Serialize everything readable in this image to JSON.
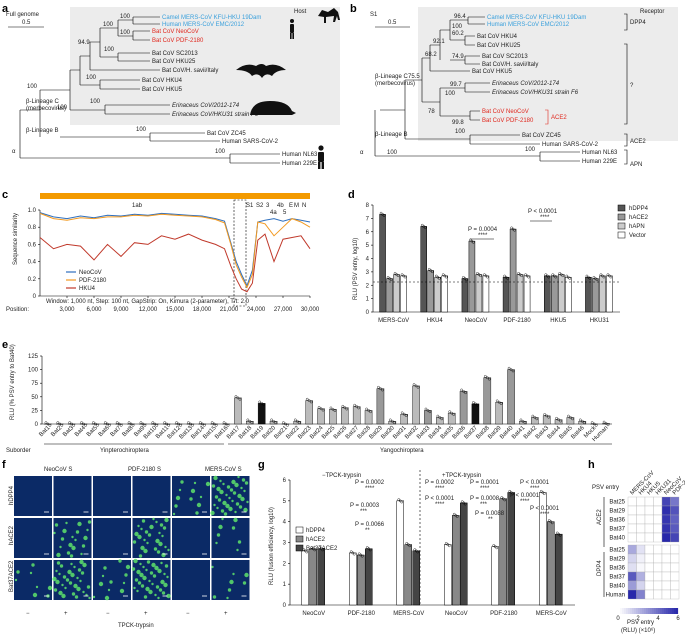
{
  "panel_labels": {
    "a": "a",
    "b": "b",
    "c": "c",
    "d": "d",
    "e": "e",
    "f": "f",
    "g": "g",
    "h": "h"
  },
  "panel_a": {
    "full_genome": "Full genome",
    "host": "Host",
    "scale": "0.5",
    "taxa": [
      "Camel MERS-CoV KFU-HKU 19Dam",
      "Human MERS-CoV EMC/2012",
      "Bat CoV NeoCoV",
      "Bat CoV PDF-2180",
      "Bat CoV SC2013",
      "Bat CoV HKU25",
      "Bat CoV/H. savii/Italy",
      "Bat CoV HKU4",
      "Bat CoV HKU5",
      "Erinaceus CoV/2012-174",
      "Erinaceus CoV/HKU31 strain F6",
      "Bat CoV ZC45",
      "Human SARS-CoV-2",
      "Human NL63",
      "Human 229E"
    ],
    "bootstrap": [
      "100",
      "100",
      "100",
      "94.9",
      "100",
      "100",
      "100",
      "100",
      "100",
      "100",
      "100"
    ],
    "groups": [
      "β-Lineage C",
      "(merbecovirus)",
      "β-Lineage B",
      "α"
    ]
  },
  "panel_b": {
    "s1": "S1",
    "scale": "0.5",
    "receptor": "Receptor",
    "receptors": [
      "DPP4",
      "?",
      "ACE2",
      "ACE2",
      "APN"
    ],
    "taxa": [
      "Camel MERS-CoV KFU-HKU 19Dam",
      "Human MERS-CoV EMC/2012",
      "Bat CoV HKU4",
      "Bat CoV HKU25",
      "Bat CoV SC2013",
      "Bat CoV/H. savii/Italy",
      "Bat CoV HKU5",
      "Erinaceus CoV/2012-174",
      "Erinaceus CoV/HKU31 strain F6",
      "Bat CoV NeoCoV",
      "Bat CoV PDF-2180",
      "Bat CoV ZC45",
      "Human SARS-CoV-2",
      "Human NL63",
      "Human 229E"
    ],
    "bootstrap": [
      "96.4",
      "100",
      "60.2",
      "92.1",
      "74.9",
      "68.2",
      "75.5",
      "99.7",
      "100",
      "78",
      "99.8",
      "100",
      "100",
      "100"
    ],
    "groups": [
      "β-Lineage C",
      "(merbecovirus)",
      "β-Lineage B",
      "α"
    ]
  },
  "chart_data": [
    {
      "type": "line",
      "panel": "c",
      "title": "",
      "xlabel": "Position:",
      "ylabel": "Sequence similarity",
      "xlim": [
        0,
        30000
      ],
      "ylim": [
        0,
        1.0
      ],
      "xticks": [
        "3,000",
        "6,000",
        "9,000",
        "12,000",
        "15,000",
        "18,000",
        "21,000",
        "24,000",
        "27,000",
        "30,000"
      ],
      "yticks": [
        "0",
        "0.2",
        "0.4",
        "0.6",
        "0.8",
        "1.0"
      ],
      "genes": [
        "1ab",
        "S1",
        "S2",
        "3",
        "4a",
        "4b",
        "5",
        "E",
        "M",
        "N"
      ],
      "legend": [
        "NeoCoV",
        "PDF-2180",
        "HKU4"
      ],
      "footnote": "Window: 1,000 nt, Step: 100 nt, GapStrip: On, Kimura (2-parameter), T/t: 2.0",
      "x": [
        0,
        1500,
        3000,
        4500,
        6000,
        7500,
        9000,
        10500,
        12000,
        13500,
        15000,
        16500,
        18000,
        19500,
        20500,
        21200,
        21800,
        22400,
        23000,
        23600,
        24200,
        25000,
        26000,
        27000,
        28000,
        29000,
        30000
      ],
      "series": [
        {
          "name": "NeoCoV",
          "values": [
            0.97,
            0.92,
            0.9,
            0.93,
            0.91,
            0.94,
            0.93,
            0.95,
            0.94,
            0.96,
            0.95,
            0.94,
            0.93,
            0.9,
            0.87,
            0.62,
            0.4,
            0.25,
            0.12,
            0.3,
            0.86,
            0.88,
            0.9,
            0.87,
            0.9,
            0.88,
            0.86
          ]
        },
        {
          "name": "PDF-2180",
          "values": [
            0.96,
            0.9,
            0.88,
            0.91,
            0.9,
            0.92,
            0.92,
            0.94,
            0.93,
            0.95,
            0.94,
            0.93,
            0.92,
            0.89,
            0.85,
            0.6,
            0.36,
            0.22,
            0.1,
            0.25,
            0.86,
            0.84,
            0.7,
            0.8,
            0.9,
            0.86,
            0.8
          ]
        },
        {
          "name": "HKU4",
          "values": [
            0.68,
            0.55,
            0.6,
            0.58,
            0.42,
            0.6,
            0.46,
            0.62,
            0.6,
            0.7,
            0.66,
            0.72,
            0.65,
            0.6,
            0.55,
            0.35,
            0.2,
            0.08,
            0.05,
            0.15,
            0.65,
            0.72,
            0.4,
            0.66,
            0.68,
            0.7,
            0.55
          ]
        }
      ]
    },
    {
      "type": "bar",
      "panel": "d",
      "ylabel": "RLU (PSV entry, log10)",
      "ylim": [
        0,
        8
      ],
      "yticks": [
        "0",
        "1",
        "2",
        "3",
        "4",
        "5",
        "6",
        "7",
        "8"
      ],
      "categories": [
        "MERS-CoV",
        "HKU4",
        "NeoCoV",
        "PDF-2180",
        "HKU5",
        "HKU31"
      ],
      "series": [
        {
          "name": "hDPP4",
          "values": [
            7.3,
            6.4,
            2.5,
            2.6,
            2.7,
            2.6
          ]
        },
        {
          "name": "hACE2",
          "values": [
            2.5,
            3.1,
            5.3,
            6.2,
            2.7,
            2.5
          ]
        },
        {
          "name": "hAPN",
          "values": [
            2.8,
            2.6,
            2.8,
            2.8,
            2.8,
            2.7
          ]
        },
        {
          "name": "Vector",
          "values": [
            2.7,
            2.7,
            2.7,
            2.7,
            2.6,
            2.7
          ]
        }
      ],
      "annotations": [
        "P = 0.0004",
        "****",
        "P < 0.0001",
        "****"
      ]
    },
    {
      "type": "bar",
      "panel": "e",
      "ylabel": "RLU (% PSV entry to Bat40)",
      "ylim": [
        0,
        125
      ],
      "yticks": [
        "0",
        "25",
        "50",
        "75",
        "100",
        "125"
      ],
      "categories": [
        "Bat1",
        "Bat2",
        "Bat3",
        "Bat4",
        "Bat5",
        "Bat6",
        "Bat7",
        "Bat8",
        "Bat9",
        "Bat10",
        "Bat11",
        "Bat12",
        "Bat13",
        "Bat14",
        "Bat15",
        "Bat16",
        "Bat17",
        "Bat18",
        "Bat19",
        "Bat20",
        "Bat21",
        "Bat22",
        "Bat23",
        "Bat24",
        "Bat25",
        "Bat26",
        "Bat27",
        "Bat28",
        "Bat29",
        "Bat30",
        "Bat31",
        "Bat32",
        "Bat33",
        "Bat34",
        "Bat35",
        "Bat36",
        "Bat37",
        "Bat38",
        "Bat39",
        "Bat40",
        "Bat41",
        "Bat42",
        "Bat43",
        "Bat44",
        "Bat45",
        "Bat46",
        "Mock",
        "Human"
      ],
      "values": [
        0,
        0,
        0,
        0,
        0,
        0,
        0,
        0,
        0,
        0,
        0,
        0,
        0,
        0,
        0,
        0,
        48,
        5,
        38,
        5,
        0,
        5,
        43,
        28,
        27,
        30,
        32,
        25,
        65,
        5,
        18,
        70,
        25,
        12,
        20,
        60,
        37,
        85,
        40,
        100,
        5,
        12,
        15,
        8,
        12,
        5,
        0,
        1
      ],
      "groups": [
        "Suborder",
        "Yinpterochiroptera",
        "Yangochiroptera"
      ]
    },
    {
      "type": "bar",
      "panel": "g",
      "ylabel": "RLU (fusion efficiency, log10)",
      "ylim": [
        0,
        6
      ],
      "yticks": [
        "0",
        "1",
        "2",
        "3",
        "4",
        "5",
        "6"
      ],
      "subtitles": [
        "−TPCK-trypsin",
        "+TPCK-trypsin"
      ],
      "categories": [
        "NeoCoV",
        "PDF-2180",
        "MERS-CoV",
        "NeoCoV",
        "PDF-2180",
        "MERS-CoV"
      ],
      "series": [
        {
          "name": "hDPP4",
          "values": [
            2.6,
            2.5,
            5.0,
            2.9,
            2.8,
            5.4
          ]
        },
        {
          "name": "hACE2",
          "values": [
            2.7,
            2.4,
            2.9,
            4.3,
            5.1,
            4.0
          ]
        },
        {
          "name": "Bat37ACE2",
          "values": [
            2.7,
            2.7,
            2.6,
            4.9,
            5.4,
            3.4
          ]
        }
      ],
      "annotations": [
        "P = 0.0002",
        "****",
        "P = 0.0003",
        "***",
        "P = 0.0066",
        "**",
        "P = 0.0002",
        "****",
        "P = 0.0001",
        "****",
        "P < 0.0001",
        "****",
        "P < 0.0001",
        "****",
        "P = 0.0008",
        "***",
        "P = 0.0088",
        "**",
        "P < 0.0001",
        "****",
        "P < 0.0001",
        "****"
      ]
    },
    {
      "type": "heatmap",
      "panel": "h",
      "title": "PSV entry",
      "columns": [
        "MERS-CoV",
        "HKU4",
        "HKU5",
        "HKU31",
        "NeoCoV",
        "PDF-2180"
      ],
      "rows": [
        "Bat25",
        "Bat29",
        "Bat36",
        "Bat37",
        "Bat40",
        "Bat25",
        "Bat29",
        "Bat36",
        "Bat37",
        "Bat40",
        "Human"
      ],
      "groups": [
        "ACE2",
        "DPP4"
      ],
      "values": [
        [
          0,
          0,
          0,
          0,
          5.2,
          3.8
        ],
        [
          0,
          0,
          0,
          0,
          5.8,
          4.8
        ],
        [
          0,
          0,
          0,
          0,
          5.6,
          4.4
        ],
        [
          0,
          0,
          0,
          0,
          5.7,
          4.6
        ],
        [
          0,
          0,
          0,
          0,
          6.0,
          5.2
        ],
        [
          2.4,
          0.8,
          0,
          0,
          0,
          0
        ],
        [
          1.2,
          0.4,
          0,
          0,
          0,
          0
        ],
        [
          0.9,
          0.2,
          0,
          0,
          0,
          0
        ],
        [
          4.6,
          2.2,
          0,
          0,
          0,
          0
        ],
        [
          2.8,
          1.2,
          0,
          0,
          0,
          0
        ],
        [
          6.0,
          3.5,
          0,
          0,
          0,
          0
        ]
      ],
      "scale_label": "PSV entry",
      "scale_unit": "(RLU) (×10⁶)",
      "scale_ticks": [
        "0",
        "2",
        "4",
        "6"
      ]
    }
  ],
  "panel_f": {
    "columns": [
      "NeoCoV S",
      "PDF-2180 S",
      "MERS-CoV S"
    ],
    "rows": [
      "hDPP4",
      "hACE2",
      "Bat37ACE2"
    ],
    "signs": [
      "−",
      "+",
      "−",
      "+",
      "−",
      "+"
    ],
    "xlabel": "TPCK-trypsin"
  }
}
